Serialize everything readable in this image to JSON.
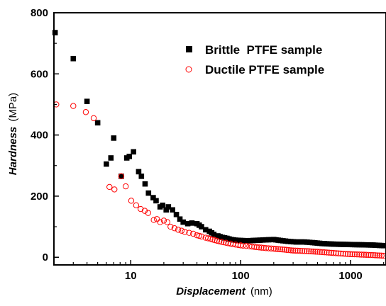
{
  "chart_data": {
    "type": "scatter",
    "x_scale": "log",
    "y_scale": "linear",
    "xlim": [
      2,
      2100
    ],
    "ylim": [
      -25,
      800
    ],
    "x_ticks": [
      10,
      100,
      1000
    ],
    "x_tick_labels": [
      "10",
      "100",
      "1000"
    ],
    "y_ticks": [
      0,
      200,
      400,
      600,
      800
    ],
    "y_tick_labels": [
      "0",
      "200",
      "400",
      "600",
      "800"
    ],
    "xlabel": {
      "main": "Displacement",
      "unit": "(nm)"
    },
    "ylabel": {
      "main": "Hardness",
      "unit": "(MPa)"
    },
    "legend": {
      "position": "top-right"
    },
    "grid": false,
    "series": [
      {
        "name": "Brittle  PTFE sample",
        "marker": "filled-square",
        "color": "#000000",
        "x": [
          2.05,
          3,
          4,
          5,
          6,
          6.6,
          7,
          8.2,
          9.2,
          9.7,
          10.6,
          11.8,
          12.5,
          13.5,
          14.5,
          16,
          17,
          18.5,
          19.5,
          21,
          22,
          24,
          26,
          28,
          30,
          33,
          36,
          40,
          44,
          48,
          52,
          57,
          62,
          68,
          75,
          82,
          90,
          100,
          115,
          130,
          150,
          170,
          200,
          230,
          270,
          320,
          380,
          450,
          550,
          700,
          900,
          1200,
          1600,
          2000
        ],
        "y": [
          735,
          650,
          510,
          440,
          305,
          325,
          390,
          265,
          325,
          330,
          345,
          280,
          265,
          240,
          210,
          195,
          185,
          165,
          170,
          155,
          165,
          155,
          140,
          125,
          115,
          110,
          112,
          110,
          100,
          90,
          85,
          75,
          70,
          65,
          62,
          58,
          56,
          55,
          54,
          55,
          56,
          57,
          58,
          55,
          52,
          50,
          50,
          48,
          45,
          43,
          42,
          41,
          40,
          38
        ]
      },
      {
        "name": "Ductile PTFE sample",
        "marker": "open-circle",
        "color": "#ff0000",
        "x": [
          2.1,
          3,
          3.9,
          4.6,
          6.4,
          7.1,
          8.2,
          9,
          10.1,
          11.2,
          12.3,
          13.4,
          14.4,
          16.2,
          17.3,
          18.5,
          20,
          21.5,
          23,
          25,
          27,
          29,
          31,
          34,
          37,
          40,
          44,
          48,
          53,
          58,
          64,
          70,
          77,
          85,
          95,
          105,
          120,
          140,
          170,
          200,
          250,
          300,
          400,
          500,
          700,
          900,
          1200,
          1600,
          2000
        ],
        "y": [
          500,
          495,
          475,
          455,
          230,
          222,
          265,
          232,
          185,
          170,
          158,
          152,
          145,
          122,
          125,
          115,
          120,
          115,
          100,
          95,
          90,
          87,
          83,
          80,
          77,
          72,
          68,
          64,
          60,
          56,
          52,
          49,
          46,
          43,
          40,
          38,
          36,
          33,
          30,
          28,
          25,
          22,
          20,
          18,
          14,
          11,
          9,
          7,
          5
        ]
      }
    ]
  }
}
